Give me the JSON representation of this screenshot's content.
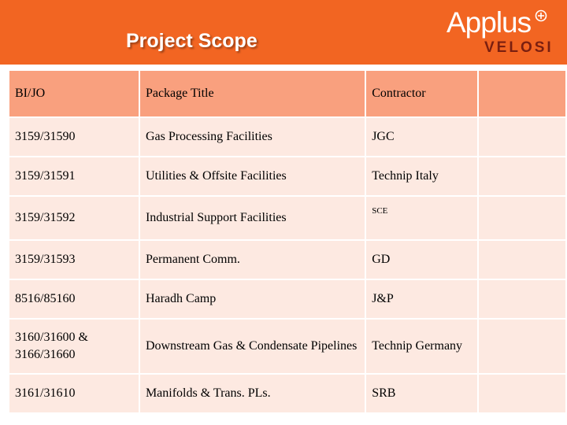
{
  "header": {
    "title": "Project Scope",
    "logo": {
      "brand": "Applus",
      "tagline": "VELOSI",
      "mark": "plus-circle-icon"
    }
  },
  "colors": {
    "header_bg": "#f26522",
    "table_header_bg": "#f9a07e",
    "table_row_bg": "#fde9e1",
    "logo_tagline": "#7a1f10"
  },
  "table": {
    "columns": [
      "BI/JO",
      "Package Title",
      "Contractor",
      ""
    ],
    "rows": [
      {
        "bijo": "3159/31590",
        "title": "Gas Processing Facilities",
        "contractor": "JGC",
        "extra": ""
      },
      {
        "bijo": "3159/31591",
        "title": "Utilities & Offsite Facilities",
        "contractor": "Technip Italy",
        "extra": ""
      },
      {
        "bijo": "3159/31592",
        "title": "Industrial Support Facilities",
        "contractor": "SCE",
        "extra": ""
      },
      {
        "bijo": "3159/31593",
        "title": "Permanent Comm.",
        "contractor": "GD",
        "extra": ""
      },
      {
        "bijo": "8516/85160",
        "title": "Haradh Camp",
        "contractor": "J&P",
        "extra": ""
      },
      {
        "bijo": "3160/31600 & 3166/31660",
        "title": "Downstream Gas & Condensate Pipelines",
        "contractor": "Technip Germany",
        "extra": ""
      },
      {
        "bijo": "3161/31610",
        "title": "Manifolds & Trans. PLs.",
        "contractor": "SRB",
        "extra": ""
      }
    ]
  }
}
